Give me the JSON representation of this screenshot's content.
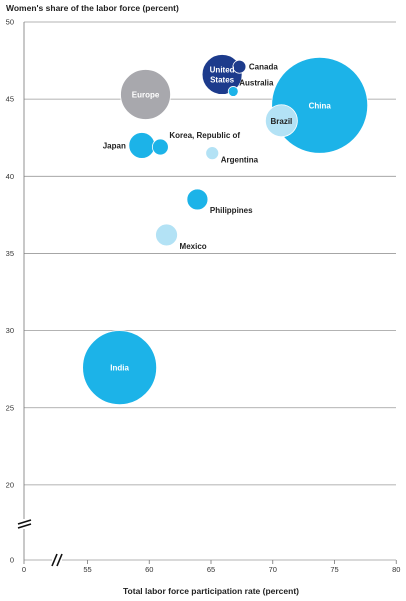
{
  "chart_data": {
    "type": "scatter",
    "ylabel": "Women's share of the labor force (percent)",
    "xlabel": "Total labor force participation rate (percent)",
    "x_ticks": [
      "0",
      "55",
      "60",
      "65",
      "70",
      "75",
      "80"
    ],
    "y_ticks": [
      "0",
      "20",
      "25",
      "30",
      "35",
      "40",
      "45",
      "50"
    ],
    "xlim": [
      52,
      80
    ],
    "ylim": [
      15,
      50
    ],
    "axis_breaks": true,
    "grid": "horizontal",
    "points": [
      {
        "label": "China",
        "x": 73.8,
        "y": 44.6,
        "size": 48,
        "color": "#1cb3e8",
        "label_pos": "inside",
        "label_color": "#ffffff"
      },
      {
        "label": "India",
        "x": 57.6,
        "y": 27.6,
        "size": 37,
        "color": "#1cb3e8",
        "label_pos": "inside",
        "label_color": "#ffffff"
      },
      {
        "label": "Europe",
        "x": 59.7,
        "y": 45.3,
        "size": 25,
        "color": "#a8a8ad",
        "label_pos": "inside",
        "label_color": "#ffffff"
      },
      {
        "label": "United States",
        "x": 65.9,
        "y": 46.6,
        "size": 20,
        "color": "#1d3b8c",
        "label_pos": "inside",
        "label_color": "#ffffff"
      },
      {
        "label": "Brazil",
        "x": 70.7,
        "y": 43.6,
        "size": 16,
        "color": "#b3e2f5",
        "label_pos": "inside",
        "label_color": "#222222"
      },
      {
        "label": "Japan",
        "x": 59.4,
        "y": 42.0,
        "size": 13,
        "color": "#1cb3e8",
        "label_pos": "left",
        "label_color": "#222222"
      },
      {
        "label": "Philippines",
        "x": 63.9,
        "y": 38.5,
        "size": 10.5,
        "color": "#1cb3e8",
        "label_pos": "right-below",
        "label_color": "#222222"
      },
      {
        "label": "Mexico",
        "x": 61.4,
        "y": 36.2,
        "size": 11,
        "color": "#b3e2f5",
        "label_pos": "right-below",
        "label_color": "#222222"
      },
      {
        "label": "Korea, Republic of",
        "x": 60.9,
        "y": 41.9,
        "size": 8,
        "color": "#1cb3e8",
        "label_pos": "right-above",
        "label_color": "#222222"
      },
      {
        "label": "Canada",
        "x": 67.3,
        "y": 47.1,
        "size": 6.5,
        "color": "#1d3b8c",
        "label_pos": "right",
        "label_color": "#222222"
      },
      {
        "label": "Argentina",
        "x": 65.1,
        "y": 41.5,
        "size": 6.5,
        "color": "#b3e2f5",
        "label_pos": "right-below",
        "label_color": "#222222"
      },
      {
        "label": "Australia",
        "x": 66.8,
        "y": 45.5,
        "size": 5,
        "color": "#1cb3e8",
        "label_pos": "right-above",
        "label_color": "#222222"
      }
    ]
  }
}
